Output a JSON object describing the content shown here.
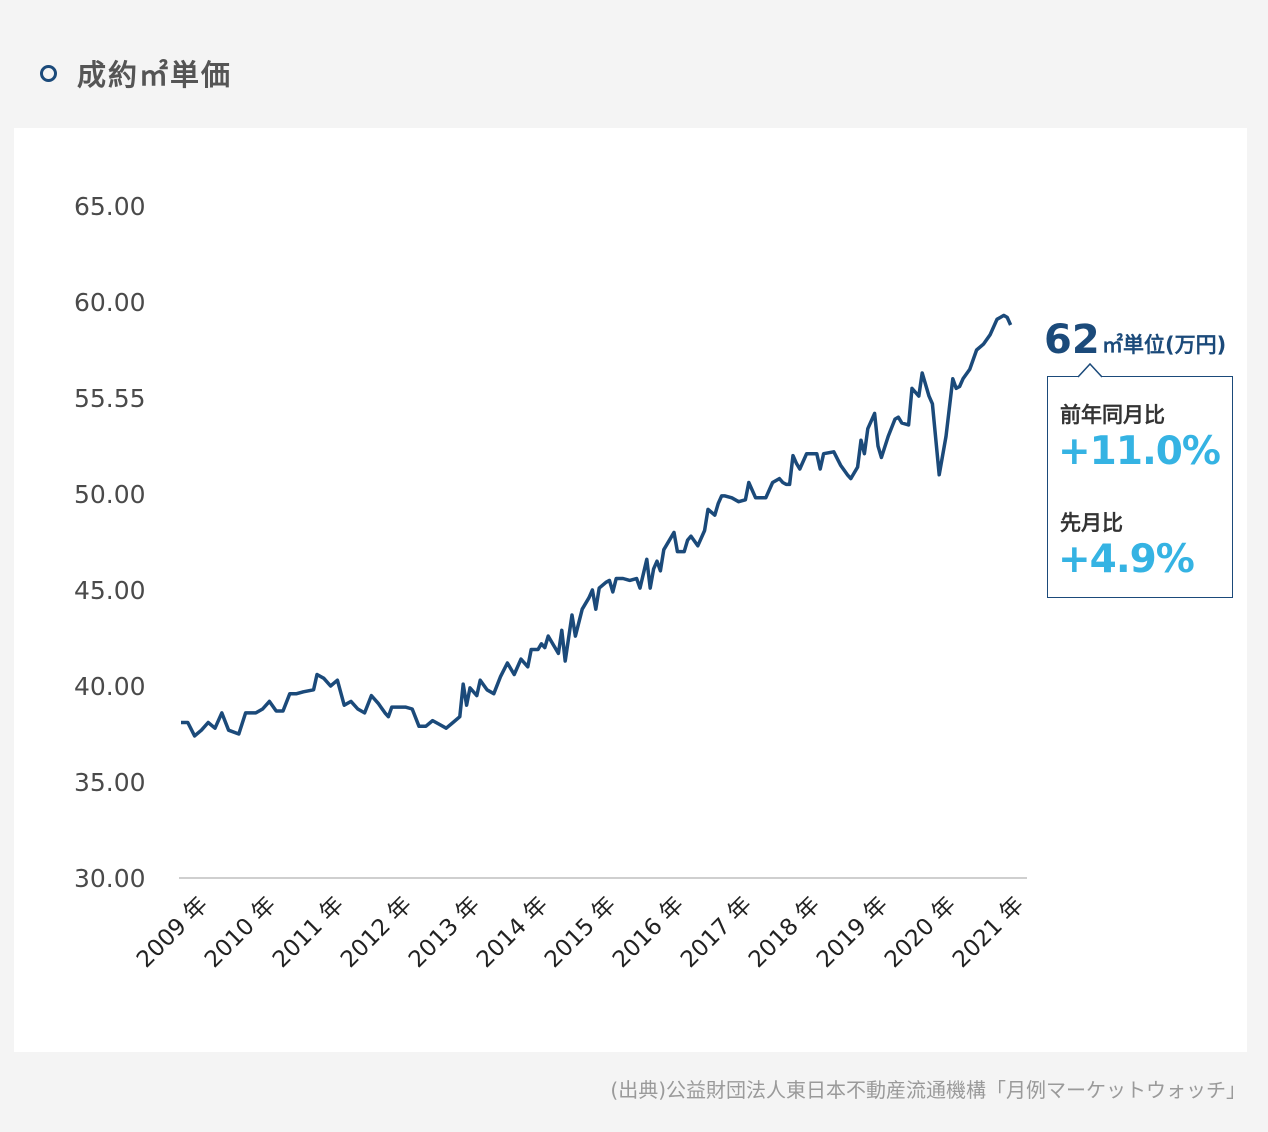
{
  "header": {
    "title": "成約㎡単価"
  },
  "chart_data": {
    "type": "line",
    "yticks": [
      "65.00",
      "60.00",
      "55.55",
      "50.00",
      "45.00",
      "40.00",
      "35.00",
      "30.00"
    ],
    "ylim": [
      30,
      65
    ],
    "xticks": [
      "2009 年",
      "2010 年",
      "2011 年",
      "2012 年",
      "2013 年",
      "2014 年",
      "2015 年",
      "2016 年",
      "2017 年",
      "2018 年",
      "2019 年",
      "2020 年",
      "2021 年"
    ],
    "xlim": [
      2009,
      2021.65
    ],
    "series": [
      {
        "color": "#1b4a7a",
        "points": [
          [
            2009.0,
            38.1
          ],
          [
            2009.1,
            38.1
          ],
          [
            2009.2,
            37.4
          ],
          [
            2009.3,
            37.7
          ],
          [
            2009.4,
            38.1
          ],
          [
            2009.5,
            37.8
          ],
          [
            2009.6,
            38.6
          ],
          [
            2009.7,
            37.7
          ],
          [
            2009.85,
            37.5
          ],
          [
            2009.95,
            38.6
          ],
          [
            2010.1,
            38.6
          ],
          [
            2010.2,
            38.8
          ],
          [
            2010.3,
            39.2
          ],
          [
            2010.4,
            38.7
          ],
          [
            2010.5,
            38.7
          ],
          [
            2010.6,
            39.6
          ],
          [
            2010.7,
            39.6
          ],
          [
            2010.8,
            39.7
          ],
          [
            2010.95,
            39.8
          ],
          [
            2011.0,
            40.6
          ],
          [
            2011.1,
            40.4
          ],
          [
            2011.2,
            40.0
          ],
          [
            2011.3,
            40.3
          ],
          [
            2011.4,
            39.0
          ],
          [
            2011.5,
            39.2
          ],
          [
            2011.6,
            38.8
          ],
          [
            2011.7,
            38.6
          ],
          [
            2011.8,
            39.5
          ],
          [
            2011.9,
            39.1
          ],
          [
            2012.0,
            38.6
          ],
          [
            2012.05,
            38.4
          ],
          [
            2012.1,
            38.9
          ],
          [
            2012.2,
            38.9
          ],
          [
            2012.3,
            38.9
          ],
          [
            2012.4,
            38.8
          ],
          [
            2012.5,
            37.9
          ],
          [
            2012.6,
            37.9
          ],
          [
            2012.7,
            38.2
          ],
          [
            2012.8,
            38.0
          ],
          [
            2012.9,
            37.8
          ],
          [
            2013.0,
            38.1
          ],
          [
            2013.1,
            38.4
          ],
          [
            2013.15,
            40.1
          ],
          [
            2013.2,
            39.0
          ],
          [
            2013.25,
            39.9
          ],
          [
            2013.35,
            39.5
          ],
          [
            2013.4,
            40.3
          ],
          [
            2013.5,
            39.8
          ],
          [
            2013.6,
            39.6
          ],
          [
            2013.7,
            40.5
          ],
          [
            2013.8,
            41.2
          ],
          [
            2013.9,
            40.6
          ],
          [
            2014.0,
            41.4
          ],
          [
            2014.1,
            41.0
          ],
          [
            2014.15,
            41.9
          ],
          [
            2014.25,
            41.9
          ],
          [
            2014.3,
            42.2
          ],
          [
            2014.35,
            42.0
          ],
          [
            2014.4,
            42.6
          ],
          [
            2014.5,
            42.0
          ],
          [
            2014.55,
            41.7
          ],
          [
            2014.6,
            42.9
          ],
          [
            2014.65,
            41.3
          ],
          [
            2014.75,
            43.7
          ],
          [
            2014.8,
            42.6
          ],
          [
            2014.9,
            44.0
          ],
          [
            2015.0,
            44.6
          ],
          [
            2015.05,
            45.0
          ],
          [
            2015.1,
            44.0
          ],
          [
            2015.15,
            45.1
          ],
          [
            2015.25,
            45.4
          ],
          [
            2015.3,
            45.5
          ],
          [
            2015.35,
            44.9
          ],
          [
            2015.4,
            45.6
          ],
          [
            2015.5,
            45.6
          ],
          [
            2015.6,
            45.5
          ],
          [
            2015.7,
            45.6
          ],
          [
            2015.75,
            45.1
          ],
          [
            2015.85,
            46.6
          ],
          [
            2015.9,
            45.1
          ],
          [
            2015.95,
            46.1
          ],
          [
            2016.0,
            46.5
          ],
          [
            2016.05,
            46.0
          ],
          [
            2016.1,
            47.1
          ],
          [
            2016.2,
            47.7
          ],
          [
            2016.25,
            48.0
          ],
          [
            2016.3,
            47.0
          ],
          [
            2016.4,
            47.0
          ],
          [
            2016.45,
            47.6
          ],
          [
            2016.5,
            47.8
          ],
          [
            2016.6,
            47.3
          ],
          [
            2016.7,
            48.1
          ],
          [
            2016.75,
            49.2
          ],
          [
            2016.85,
            48.9
          ],
          [
            2016.9,
            49.5
          ],
          [
            2016.95,
            49.9
          ],
          [
            2017.0,
            49.9
          ],
          [
            2017.1,
            49.8
          ],
          [
            2017.2,
            49.6
          ],
          [
            2017.3,
            49.7
          ],
          [
            2017.35,
            50.6
          ],
          [
            2017.45,
            49.8
          ],
          [
            2017.6,
            49.8
          ],
          [
            2017.7,
            50.6
          ],
          [
            2017.8,
            50.8
          ],
          [
            2017.85,
            50.6
          ],
          [
            2017.9,
            50.5
          ],
          [
            2017.95,
            50.5
          ],
          [
            2018.0,
            52.0
          ],
          [
            2018.05,
            51.6
          ],
          [
            2018.1,
            51.3
          ],
          [
            2018.2,
            52.1
          ],
          [
            2018.3,
            52.1
          ],
          [
            2018.35,
            52.1
          ],
          [
            2018.4,
            51.3
          ],
          [
            2018.45,
            52.1
          ],
          [
            2018.6,
            52.2
          ],
          [
            2018.7,
            51.5
          ],
          [
            2018.8,
            51.0
          ],
          [
            2018.85,
            50.8
          ],
          [
            2018.95,
            51.4
          ],
          [
            2019.0,
            52.8
          ],
          [
            2019.05,
            52.1
          ],
          [
            2019.1,
            53.4
          ],
          [
            2019.2,
            54.2
          ],
          [
            2019.25,
            52.5
          ],
          [
            2019.3,
            51.9
          ],
          [
            2019.4,
            53.0
          ],
          [
            2019.5,
            53.9
          ],
          [
            2019.55,
            54.0
          ],
          [
            2019.6,
            53.7
          ],
          [
            2019.7,
            53.6
          ],
          [
            2019.75,
            55.5
          ],
          [
            2019.85,
            55.1
          ],
          [
            2019.9,
            56.3
          ],
          [
            2020.0,
            55.1
          ],
          [
            2020.05,
            54.7
          ],
          [
            2020.15,
            51.0
          ],
          [
            2020.25,
            53.0
          ],
          [
            2020.35,
            56.0
          ],
          [
            2020.4,
            55.5
          ],
          [
            2020.45,
            55.6
          ],
          [
            2020.5,
            56.0
          ],
          [
            2020.6,
            56.5
          ],
          [
            2020.7,
            57.5
          ],
          [
            2020.8,
            57.8
          ],
          [
            2020.9,
            58.3
          ],
          [
            2021.0,
            59.1
          ],
          [
            2021.05,
            59.2
          ],
          [
            2021.1,
            59.3
          ],
          [
            2021.15,
            59.2
          ],
          [
            2021.2,
            58.8
          ]
        ]
      }
    ]
  },
  "latest": {
    "value": "62",
    "unit": "㎡単位(万円)"
  },
  "callout": {
    "yoy_label": "前年同月比",
    "yoy_value": "+11.0%",
    "mom_label": "先月比",
    "mom_value": "+4.9%"
  },
  "source": "(出典)公益財団法人東日本不動産流通機構「月例マーケットウォッチ」"
}
